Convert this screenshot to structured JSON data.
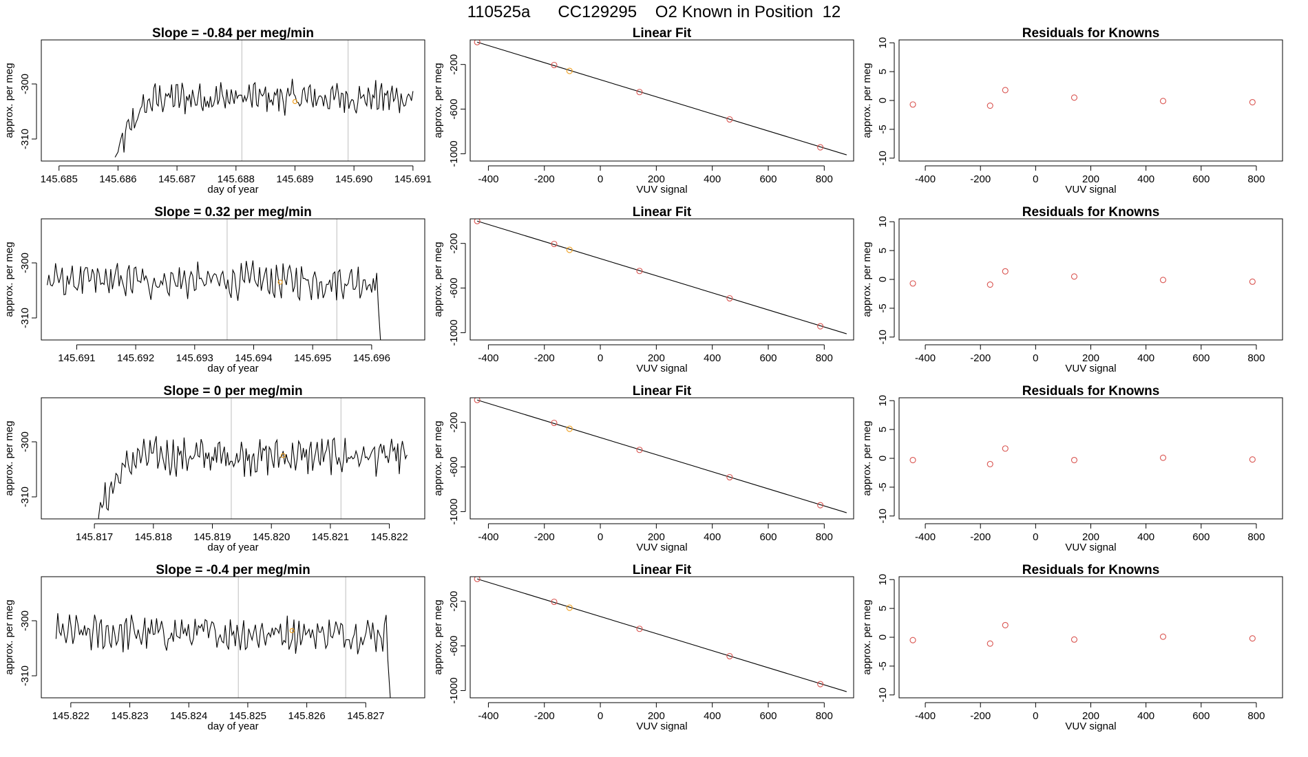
{
  "title": "110525a      CC129295    O2 Known in Position  12",
  "colors": {
    "line": "#000000",
    "known": "#d9534f",
    "sample": "#f0a020",
    "vline": "#c8c8c8",
    "frame": "#000000"
  },
  "chart_data": [
    {
      "type": "line",
      "title": "Slope =  -0.84  per meg/min",
      "xlabel": "day of year",
      "ylabel": "approx. per meg",
      "xlim": [
        145.6847,
        145.6912
      ],
      "ylim": [
        -314,
        -292
      ],
      "xticks": [
        145.685,
        145.686,
        145.687,
        145.688,
        145.689,
        145.69,
        145.691
      ],
      "xtick_labels": [
        "145.685",
        "145.686",
        "145.687",
        "145.688",
        "145.689",
        "145.690",
        "145.691"
      ],
      "yticks": [
        -310,
        -300
      ],
      "ytick_labels": [
        "-310",
        "-300"
      ],
      "vlines": [
        145.6881,
        145.6899
      ],
      "x_start": 145.68595,
      "x_end": 145.691,
      "y_base": -302.5,
      "y_amp": 2.2,
      "ramp": true,
      "y_start": -314,
      "drop": false,
      "marker": [
        145.689,
        -303.2
      ]
    },
    {
      "type": "line",
      "title": "Slope =  0.32  per meg/min",
      "xlabel": "day of year",
      "ylabel": "approx. per meg",
      "xlim": [
        145.6904,
        145.6969
      ],
      "ylim": [
        -314,
        -292
      ],
      "xticks": [
        145.691,
        145.692,
        145.693,
        145.694,
        145.695,
        145.696
      ],
      "xtick_labels": [
        "145.691",
        "145.692",
        "145.693",
        "145.694",
        "145.695",
        "145.696"
      ],
      "yticks": [
        -310,
        -300
      ],
      "ytick_labels": [
        "-310",
        "-300"
      ],
      "vlines": [
        145.69355,
        145.69541
      ],
      "x_start": 145.6905,
      "x_end": 145.69617,
      "y_base": -303.3,
      "y_amp": 2.4,
      "ramp": false,
      "y_start": -303.3,
      "drop": true,
      "marker": [
        145.69445,
        -303.5
      ]
    },
    {
      "type": "line",
      "title": "Slope =  0  per meg/min",
      "xlabel": "day of year",
      "ylabel": "approx. per meg",
      "xlim": [
        145.8161,
        145.8226
      ],
      "ylim": [
        -314,
        -292
      ],
      "xticks": [
        145.817,
        145.818,
        145.819,
        145.82,
        145.821,
        145.822
      ],
      "xtick_labels": [
        "145.817",
        "145.818",
        "145.819",
        "145.820",
        "145.821",
        "145.822"
      ],
      "yticks": [
        -310,
        -300
      ],
      "ytick_labels": [
        "-310",
        "-300"
      ],
      "vlines": [
        145.81932,
        145.82118
      ],
      "x_start": 145.81705,
      "x_end": 145.8223,
      "y_base": -302.6,
      "y_amp": 2.4,
      "ramp": true,
      "y_start": -314,
      "drop": false,
      "marker": [
        145.8202,
        -302.5
      ]
    },
    {
      "type": "line",
      "title": "Slope =  -0.4  per meg/min",
      "xlabel": "day of year",
      "ylabel": "approx. per meg",
      "xlim": [
        145.8215,
        145.828
      ],
      "ylim": [
        -314,
        -292
      ],
      "xticks": [
        145.822,
        145.823,
        145.824,
        145.825,
        145.826,
        145.827
      ],
      "xtick_labels": [
        "145.822",
        "145.823",
        "145.824",
        "145.825",
        "145.826",
        "145.827"
      ],
      "yticks": [
        -310,
        -300
      ],
      "ytick_labels": [
        "-310",
        "-300"
      ],
      "vlines": [
        145.82484,
        145.82666
      ],
      "x_start": 145.82175,
      "x_end": 145.82743,
      "y_base": -302.3,
      "y_amp": 2.4,
      "ramp": false,
      "y_start": -302.3,
      "drop": true,
      "marker": [
        145.82575,
        -301.8
      ]
    },
    {
      "type": "scatter",
      "title": "Linear Fit",
      "xlabel": "VUV signal",
      "ylabel": "approx. per meg",
      "xlim": [
        -465,
        905
      ],
      "ylim": [
        -1065,
        20
      ],
      "xticks": [
        -400,
        -200,
        0,
        200,
        400,
        600,
        800
      ],
      "xtick_labels": [
        "-400",
        "-200",
        "0",
        "200",
        "400",
        "600",
        "800"
      ],
      "yticks": [
        -1000,
        -600,
        -200
      ],
      "ytick_labels": [
        "-1000",
        "-600",
        "-200"
      ],
      "fit_line": [
        [
          -440,
          0
        ],
        [
          880,
          -1010
        ]
      ],
      "points": [
        [
          -440,
          0
        ],
        [
          -165,
          -205
        ],
        [
          -110,
          -258
        ],
        [
          140,
          -447
        ],
        [
          462,
          -692
        ],
        [
          786,
          -942
        ]
      ],
      "sample_index": 2
    },
    {
      "type": "scatter",
      "title": "Linear Fit",
      "xlabel": "VUV signal",
      "ylabel": "approx. per meg",
      "xlim": [
        -465,
        905
      ],
      "ylim": [
        -1065,
        20
      ],
      "xticks": [
        -400,
        -200,
        0,
        200,
        400,
        600,
        800
      ],
      "xtick_labels": [
        "-400",
        "-200",
        "0",
        "200",
        "400",
        "600",
        "800"
      ],
      "yticks": [
        -1000,
        -600,
        -200
      ],
      "ytick_labels": [
        "-1000",
        "-600",
        "-200"
      ],
      "fit_line": [
        [
          -440,
          0
        ],
        [
          880,
          -1010
        ]
      ],
      "points": [
        [
          -440,
          0
        ],
        [
          -165,
          -205
        ],
        [
          -110,
          -258
        ],
        [
          140,
          -447
        ],
        [
          462,
          -692
        ],
        [
          786,
          -942
        ]
      ],
      "sample_index": 2
    },
    {
      "type": "scatter",
      "title": "Linear Fit",
      "xlabel": "VUV signal",
      "ylabel": "approx. per meg",
      "xlim": [
        -465,
        905
      ],
      "ylim": [
        -1065,
        20
      ],
      "xticks": [
        -400,
        -200,
        0,
        200,
        400,
        600,
        800
      ],
      "xtick_labels": [
        "-400",
        "-200",
        "0",
        "200",
        "400",
        "600",
        "800"
      ],
      "yticks": [
        -1000,
        -600,
        -200
      ],
      "ytick_labels": [
        "-1000",
        "-600",
        "-200"
      ],
      "fit_line": [
        [
          -440,
          0
        ],
        [
          880,
          -1010
        ]
      ],
      "points": [
        [
          -440,
          0
        ],
        [
          -165,
          -205
        ],
        [
          -110,
          -258
        ],
        [
          140,
          -447
        ],
        [
          462,
          -692
        ],
        [
          786,
          -942
        ]
      ],
      "sample_index": 2
    },
    {
      "type": "scatter",
      "title": "Linear Fit",
      "xlabel": "VUV signal",
      "ylabel": "approx. per meg",
      "xlim": [
        -465,
        905
      ],
      "ylim": [
        -1065,
        20
      ],
      "xticks": [
        -400,
        -200,
        0,
        200,
        400,
        600,
        800
      ],
      "xtick_labels": [
        "-400",
        "-200",
        "0",
        "200",
        "400",
        "600",
        "800"
      ],
      "yticks": [
        -1000,
        -600,
        -200
      ],
      "ytick_labels": [
        "-1000",
        "-600",
        "-200"
      ],
      "fit_line": [
        [
          -440,
          0
        ],
        [
          880,
          -1010
        ]
      ],
      "points": [
        [
          -440,
          0
        ],
        [
          -165,
          -205
        ],
        [
          -110,
          -258
        ],
        [
          140,
          -447
        ],
        [
          462,
          -692
        ],
        [
          786,
          -942
        ]
      ],
      "sample_index": 2
    },
    {
      "type": "scatter",
      "title": "Residuals for Knowns",
      "xlabel": "VUV signal",
      "ylabel": "approx. per meg",
      "xlim": [
        -495,
        895
      ],
      "ylim": [
        -10.5,
        10.5
      ],
      "xticks": [
        -400,
        -200,
        0,
        200,
        400,
        600,
        800
      ],
      "xtick_labels": [
        "-400",
        "-200",
        "0",
        "200",
        "400",
        "600",
        "800"
      ],
      "yticks": [
        -10,
        -5,
        0,
        5,
        10
      ],
      "ytick_labels": [
        "-10",
        "-5",
        "0",
        "5",
        "10"
      ],
      "points": [
        [
          -445,
          -0.7
        ],
        [
          -165,
          -0.9
        ],
        [
          -110,
          1.8
        ],
        [
          140,
          0.5
        ],
        [
          462,
          -0.1
        ],
        [
          786,
          -0.3
        ]
      ]
    },
    {
      "type": "scatter",
      "title": "Residuals for Knowns",
      "xlabel": "VUV signal",
      "ylabel": "approx. per meg",
      "xlim": [
        -495,
        895
      ],
      "ylim": [
        -10.5,
        10.5
      ],
      "xticks": [
        -400,
        -200,
        0,
        200,
        400,
        600,
        800
      ],
      "xtick_labels": [
        "-400",
        "-200",
        "0",
        "200",
        "400",
        "600",
        "800"
      ],
      "yticks": [
        -10,
        -5,
        0,
        5,
        10
      ],
      "ytick_labels": [
        "-10",
        "-5",
        "0",
        "5",
        "10"
      ],
      "points": [
        [
          -445,
          -0.7
        ],
        [
          -165,
          -0.9
        ],
        [
          -110,
          1.4
        ],
        [
          140,
          0.5
        ],
        [
          462,
          -0.1
        ],
        [
          786,
          -0.4
        ]
      ]
    },
    {
      "type": "scatter",
      "title": "Residuals for Knowns",
      "xlabel": "VUV signal",
      "ylabel": "approx. per meg",
      "xlim": [
        -495,
        895
      ],
      "ylim": [
        -10.5,
        10.5
      ],
      "xticks": [
        -400,
        -200,
        0,
        200,
        400,
        600,
        800
      ],
      "xtick_labels": [
        "-400",
        "-200",
        "0",
        "200",
        "400",
        "600",
        "800"
      ],
      "yticks": [
        -10,
        -5,
        0,
        5,
        10
      ],
      "ytick_labels": [
        "-10",
        "-5",
        "0",
        "5",
        "10"
      ],
      "points": [
        [
          -445,
          -0.3
        ],
        [
          -165,
          -1.0
        ],
        [
          -110,
          1.7
        ],
        [
          140,
          -0.3
        ],
        [
          462,
          0.1
        ],
        [
          786,
          -0.2
        ]
      ]
    },
    {
      "type": "scatter",
      "title": "Residuals for Knowns",
      "xlabel": "VUV signal",
      "ylabel": "approx. per meg",
      "xlim": [
        -495,
        895
      ],
      "ylim": [
        -10.5,
        10.5
      ],
      "xticks": [
        -400,
        -200,
        0,
        200,
        400,
        600,
        800
      ],
      "xtick_labels": [
        "-400",
        "-200",
        "0",
        "200",
        "400",
        "600",
        "800"
      ],
      "yticks": [
        -10,
        -5,
        0,
        5,
        10
      ],
      "ytick_labels": [
        "-10",
        "-5",
        "0",
        "5",
        "10"
      ],
      "points": [
        [
          -445,
          -0.5
        ],
        [
          -165,
          -1.1
        ],
        [
          -110,
          2.1
        ],
        [
          140,
          -0.4
        ],
        [
          462,
          0.1
        ],
        [
          786,
          -0.2
        ]
      ]
    }
  ]
}
